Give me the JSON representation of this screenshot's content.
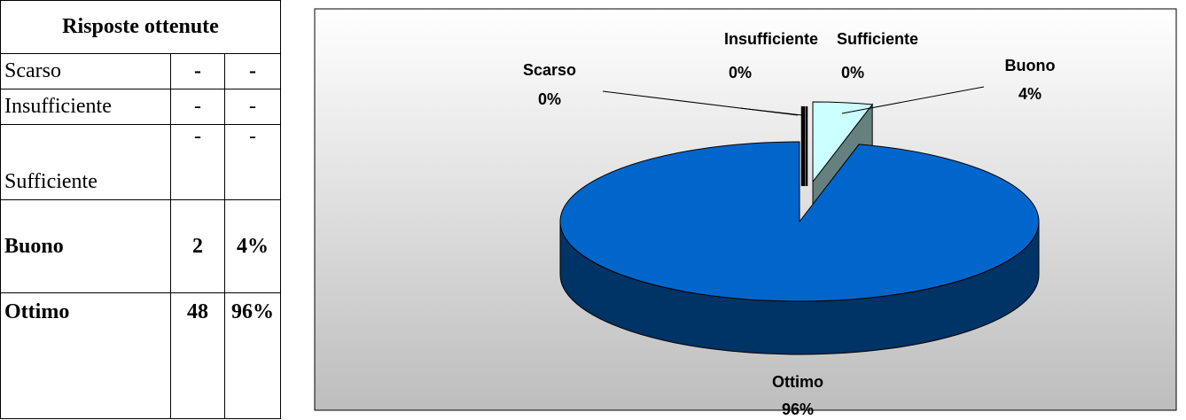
{
  "table": {
    "title": "Risposte ottenute",
    "rows": [
      [
        "Scarso",
        "-",
        "-"
      ],
      [
        "Insufficiente",
        "-",
        "-"
      ],
      [
        "Sufficiente",
        "-",
        "-"
      ],
      [
        "Buono",
        "2",
        "4%"
      ],
      [
        "Ottimo",
        "48",
        "96%"
      ]
    ]
  },
  "chart_data": {
    "type": "pie",
    "categories": [
      "Scarso",
      "Insufficiente",
      "Sufficiente",
      "Buono",
      "Ottimo"
    ],
    "values": [
      0,
      0,
      0,
      4,
      96
    ],
    "value_labels": [
      "0%",
      "0%",
      "0%",
      "4%",
      "96%"
    ],
    "colors": [
      "#ffffff",
      "#ffffff",
      "#ffffff",
      "#ccffff",
      "#0066cc"
    ]
  }
}
